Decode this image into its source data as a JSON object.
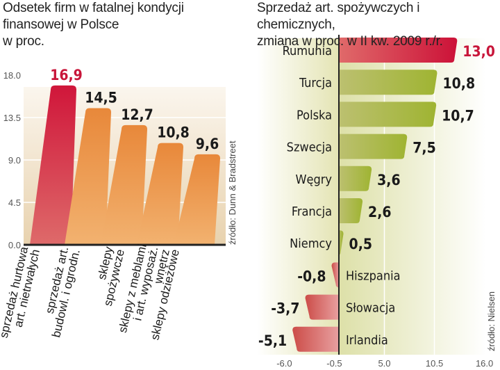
{
  "chart_data": [
    {
      "type": "bar",
      "title": "Odsetek firm w fatalnej kondycji finansowej w Polsce",
      "ylabel": "w proc.",
      "title_lines": [
        "Odsetek firm w fatalnej kondycji",
        "finansowej w Polsce",
        "w proc."
      ],
      "categories": [
        [
          "sprzedaż hurtowa",
          "art. nietrwałych"
        ],
        [
          "sprzedaż art.",
          "budowl. i ogrodn."
        ],
        [
          "sklepy",
          "spożywcze"
        ],
        [
          "sklepy z meblami",
          "i art. wyposaż.",
          "wnętrz"
        ],
        [
          "sklepy odzieżowe"
        ]
      ],
      "values": [
        16.9,
        14.5,
        12.7,
        10.8,
        9.6
      ],
      "value_labels": [
        "16,9",
        "14,5",
        "12,7",
        "10,8",
        "9,6"
      ],
      "highlight_index": 0,
      "ylim": [
        0,
        18
      ],
      "yticks": [
        "0.0",
        "4.5",
        "9.0",
        "13.5",
        "18.0"
      ],
      "ytick_values": [
        0,
        4.5,
        9,
        13.5,
        18
      ],
      "source": "źródło: Dunn & Bradstreet",
      "colors": {
        "highlight": "#d0223e",
        "bar": "#ec9a4a",
        "highlight_label": "#c8163a"
      }
    },
    {
      "type": "bar",
      "orientation": "horizontal",
      "title": "Sprzedaż art. spożywczych i chemicznych, zmiana w proc. w II kw. 2009 r./r.",
      "title_lines": [
        "Sprzedaż art. spożywczych i chemicznych,",
        "zmiana w proc. w II kw. 2009 r./r."
      ],
      "categories": [
        "Rumunia",
        "Turcja",
        "Polska",
        "Szwecja",
        "Węgry",
        "Francja",
        "Niemcy",
        "Hiszpania",
        "Słowacja",
        "Irlandia"
      ],
      "values": [
        13.0,
        10.8,
        10.7,
        7.5,
        3.6,
        2.6,
        0.5,
        -0.8,
        -3.7,
        -5.1
      ],
      "value_labels": [
        "13,0",
        "10,8",
        "10,7",
        "7,5",
        "3,6",
        "2,6",
        "0,5",
        "-0,8",
        "-3,7",
        "-5,1"
      ],
      "highlight_index": 0,
      "xlim": [
        -6,
        16
      ],
      "xticks": [
        "-6.0",
        "-0.5",
        "5.0",
        "10.5",
        "16.0"
      ],
      "xtick_values": [
        -6,
        -0.5,
        5,
        10.5,
        16
      ],
      "source": "źródło: Nielsen",
      "colors": {
        "highlight": "#d0223e",
        "positive": "#a8b83a",
        "negative": "#d2605a",
        "highlight_label": "#c8163a"
      }
    }
  ]
}
